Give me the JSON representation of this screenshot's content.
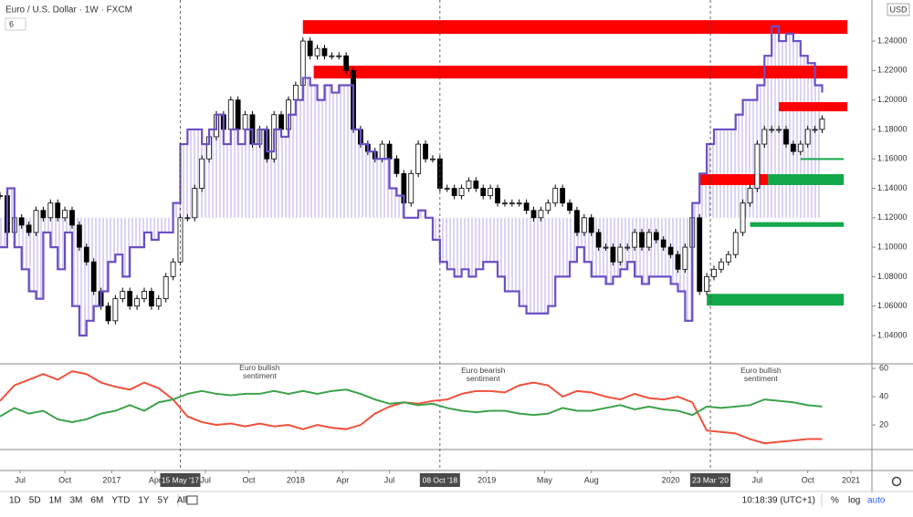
{
  "header": {
    "title": "Euro / U.S. Dollar · 1W · FXCM",
    "indicator_count": "6"
  },
  "toolbar": {
    "ranges": [
      "1D",
      "5D",
      "1M",
      "3M",
      "6M",
      "YTD",
      "1Y",
      "5Y",
      "All"
    ],
    "clock": "10:18:39 (UTC+1)",
    "options": [
      "%",
      "log",
      "auto"
    ]
  },
  "chart_data": [
    {
      "type": "candlestick",
      "currency": "USD",
      "x": [
        0,
        2,
        4,
        6,
        8,
        10,
        12,
        14,
        16,
        18,
        20,
        22,
        24,
        26,
        28,
        30,
        32,
        34,
        36,
        38,
        40,
        42,
        44,
        46,
        48,
        50,
        52,
        54,
        56,
        58,
        60,
        62,
        64,
        66,
        68,
        70,
        72,
        74,
        76,
        78,
        80,
        82,
        84,
        86,
        88,
        90,
        92,
        94,
        96,
        98,
        100,
        102,
        104,
        106,
        108,
        110,
        112,
        114,
        116,
        118,
        120,
        122,
        124,
        126,
        128,
        130,
        132,
        134,
        136,
        138,
        140,
        142,
        144,
        146,
        148,
        150,
        152,
        154,
        156,
        158,
        160,
        162,
        164,
        166,
        168,
        170,
        172,
        174,
        176,
        178,
        180,
        182,
        184,
        186,
        188,
        190,
        192,
        194,
        196,
        198,
        200,
        202,
        204,
        206,
        208,
        210,
        212,
        214,
        216,
        218,
        220,
        222,
        224,
        226,
        228
      ],
      "close": [
        1.135,
        1.11,
        1.12,
        1.115,
        1.11,
        1.125,
        1.12,
        1.13,
        1.12,
        1.125,
        1.115,
        1.1,
        1.09,
        1.07,
        1.06,
        1.05,
        1.065,
        1.07,
        1.06,
        1.065,
        1.07,
        1.06,
        1.065,
        1.08,
        1.09,
        1.12,
        1.12,
        1.14,
        1.16,
        1.175,
        1.19,
        1.18,
        1.2,
        1.18,
        1.19,
        1.17,
        1.18,
        1.16,
        1.19,
        1.18,
        1.2,
        1.21,
        1.24,
        1.23,
        1.235,
        1.23,
        1.23,
        1.23,
        1.22,
        1.18,
        1.17,
        1.165,
        1.16,
        1.17,
        1.16,
        1.15,
        1.13,
        1.15,
        1.17,
        1.16,
        1.16,
        1.14,
        1.14,
        1.135,
        1.14,
        1.145,
        1.14,
        1.135,
        1.14,
        1.13,
        1.13,
        1.13,
        1.13,
        1.125,
        1.12,
        1.125,
        1.13,
        1.14,
        1.13,
        1.125,
        1.11,
        1.12,
        1.11,
        1.1,
        1.1,
        1.09,
        1.1,
        1.1,
        1.11,
        1.1,
        1.11,
        1.105,
        1.1,
        1.095,
        1.085,
        1.1,
        1.12,
        1.07,
        1.08,
        1.085,
        1.09,
        1.095,
        1.11,
        1.13,
        1.14,
        1.17,
        1.18,
        1.18,
        1.18,
        1.17,
        1.165,
        1.17,
        1.18,
        1.18,
        1.187
      ],
      "color_up": "#ffffff",
      "color_down": "#000000",
      "line": {
        "color": "#6a4fc4",
        "values": [
          1.1,
          1.14,
          1.1,
          1.085,
          1.07,
          1.065,
          1.11,
          1.1,
          1.085,
          1.11,
          1.06,
          1.04,
          1.05,
          1.06,
          1.07,
          1.09,
          1.095,
          1.08,
          1.1,
          1.1,
          1.11,
          1.105,
          1.11,
          1.11,
          1.13,
          1.17,
          1.18,
          1.18,
          1.17,
          1.18,
          1.19,
          1.17,
          1.18,
          1.17,
          1.18,
          1.17,
          1.18,
          1.165,
          1.18,
          1.175,
          1.19,
          1.2,
          1.215,
          1.21,
          1.2,
          1.21,
          1.205,
          1.21,
          1.21,
          1.18,
          1.17,
          1.165,
          1.16,
          1.16,
          1.14,
          1.135,
          1.12,
          1.12,
          1.125,
          1.12,
          1.105,
          1.09,
          1.085,
          1.08,
          1.085,
          1.08,
          1.085,
          1.09,
          1.09,
          1.08,
          1.07,
          1.07,
          1.06,
          1.055,
          1.055,
          1.055,
          1.06,
          1.08,
          1.08,
          1.09,
          1.1,
          1.09,
          1.08,
          1.08,
          1.075,
          1.08,
          1.085,
          1.09,
          1.08,
          1.075,
          1.08,
          1.08,
          1.08,
          1.075,
          1.07,
          1.05,
          1.13,
          1.15,
          1.17,
          1.18,
          1.18,
          1.18,
          1.19,
          1.2,
          1.2,
          1.21,
          1.23,
          1.25,
          1.24,
          1.245,
          1.24,
          1.23,
          1.225,
          1.21,
          1.205
        ]
      },
      "baseline": 1.12,
      "fill": "#b9a8e8",
      "zones": [
        {
          "x": [
            84,
            235
          ],
          "y": [
            1.2449,
            1.2542
          ],
          "color": "#ff0000"
        },
        {
          "x": [
            87,
            235
          ],
          "y": [
            1.2146,
            1.2233
          ],
          "color": "#ff0000"
        },
        {
          "x": [
            216,
            235
          ],
          "y": [
            1.1923,
            1.1985
          ],
          "color": "#ff0000"
        },
        {
          "x": [
            194,
            213
          ],
          "y": [
            1.1422,
            1.1496
          ],
          "color": "#ff0000"
        },
        {
          "x": [
            213,
            234
          ],
          "y": [
            1.1422,
            1.1496
          ],
          "color": "#13a84a"
        },
        {
          "x": [
            208,
            234
          ],
          "y": [
            1.1138,
            1.117
          ],
          "color": "#13a84a"
        },
        {
          "x": [
            196,
            234
          ],
          "y": [
            1.0603,
            1.0683
          ],
          "color": "#13a84a"
        },
        {
          "x": [
            222,
            234
          ],
          "y": [
            1.1595,
            1.1605
          ],
          "color": "#13a84a"
        }
      ],
      "markers": [
        {
          "x": 50,
          "label": "15 May '17"
        },
        {
          "x": 122,
          "label": "08 Oct '18"
        },
        {
          "x": 197,
          "label": "23 Mar '20"
        }
      ],
      "xlim": [
        0,
        241.8
      ],
      "xticks": [
        {
          "value": 5.6,
          "label": "Jul"
        },
        {
          "value": 18,
          "label": "Oct"
        },
        {
          "value": 31,
          "label": "2017"
        },
        {
          "value": 43,
          "label": "Apr"
        },
        {
          "value": 57,
          "label": "Jul"
        },
        {
          "value": 69,
          "label": "Oct"
        },
        {
          "value": 82,
          "label": "2018"
        },
        {
          "value": 95,
          "label": "Apr"
        },
        {
          "value": 108,
          "label": "Jul"
        },
        {
          "value": 135,
          "label": "2019"
        },
        {
          "value": 151,
          "label": "May"
        },
        {
          "value": 164,
          "label": "Aug"
        },
        {
          "value": 186,
          "label": "2020"
        },
        {
          "value": 210,
          "label": "Jul"
        },
        {
          "value": 224,
          "label": "Oct"
        },
        {
          "value": 236,
          "label": "2021"
        }
      ],
      "ylim": [
        1.0214,
        1.2679
      ],
      "yticks": [
        {
          "value": 1.04,
          "label": "1.04000"
        },
        {
          "value": 1.06,
          "label": "1.06000"
        },
        {
          "value": 1.08,
          "label": "1.08000"
        },
        {
          "value": 1.1,
          "label": "1.10000"
        },
        {
          "value": 1.12,
          "label": "1.12000"
        },
        {
          "value": 1.14,
          "label": "1.14000"
        },
        {
          "value": 1.16,
          "label": "1.16000"
        },
        {
          "value": 1.18,
          "label": "1.18000"
        },
        {
          "value": 1.2,
          "label": "1.20000"
        },
        {
          "value": 1.22,
          "label": "1.22000"
        },
        {
          "value": 1.24,
          "label": "1.24000"
        }
      ]
    },
    {
      "type": "line",
      "x": [
        0,
        4,
        8,
        12,
        16,
        20,
        24,
        28,
        32,
        36,
        40,
        44,
        48,
        52,
        56,
        60,
        64,
        68,
        72,
        76,
        80,
        84,
        88,
        92,
        96,
        100,
        104,
        108,
        112,
        116,
        120,
        124,
        128,
        132,
        136,
        140,
        144,
        148,
        152,
        156,
        160,
        164,
        168,
        172,
        176,
        180,
        184,
        188,
        192,
        196,
        200,
        204,
        208,
        212,
        216,
        220,
        224,
        228
      ],
      "series": [
        {
          "color": "#f0503c",
          "values": [
            37,
            48,
            52,
            56,
            52,
            58,
            56,
            50,
            47,
            45,
            50,
            46,
            38,
            26,
            22,
            20,
            21,
            19,
            21,
            19,
            20,
            17,
            20,
            18,
            17,
            20,
            28,
            33,
            36,
            35,
            37,
            38,
            42,
            44,
            44,
            43,
            48,
            50,
            48,
            40,
            44,
            43,
            40,
            38,
            42,
            39,
            38,
            40,
            36,
            16,
            15,
            14,
            10,
            7,
            8,
            9,
            10,
            10
          ]
        },
        {
          "color": "#3ca24a",
          "values": [
            26,
            32,
            28,
            30,
            24,
            22,
            24,
            28,
            30,
            34,
            30,
            36,
            38,
            42,
            44,
            42,
            41,
            42,
            42,
            44,
            42,
            44,
            42,
            44,
            45,
            42,
            38,
            35,
            36,
            34,
            35,
            32,
            30,
            29,
            30,
            30,
            28,
            27,
            28,
            32,
            30,
            30,
            32,
            34,
            31,
            33,
            31,
            30,
            27,
            33,
            32,
            33,
            34,
            38,
            37,
            36,
            34,
            33
          ]
        }
      ],
      "annotations": [
        {
          "x": 72,
          "y": 55,
          "text": [
            "Euro bullish",
            "sentiment"
          ]
        },
        {
          "x": 134,
          "y": 53,
          "text": [
            "Euro bearish",
            "sentiment"
          ]
        },
        {
          "x": 211,
          "y": 53,
          "text": [
            "Euro bullish",
            "sentiment"
          ]
        }
      ],
      "ylim": [
        2.6,
        62.6
      ],
      "yticks": [
        20,
        40,
        60
      ]
    }
  ]
}
